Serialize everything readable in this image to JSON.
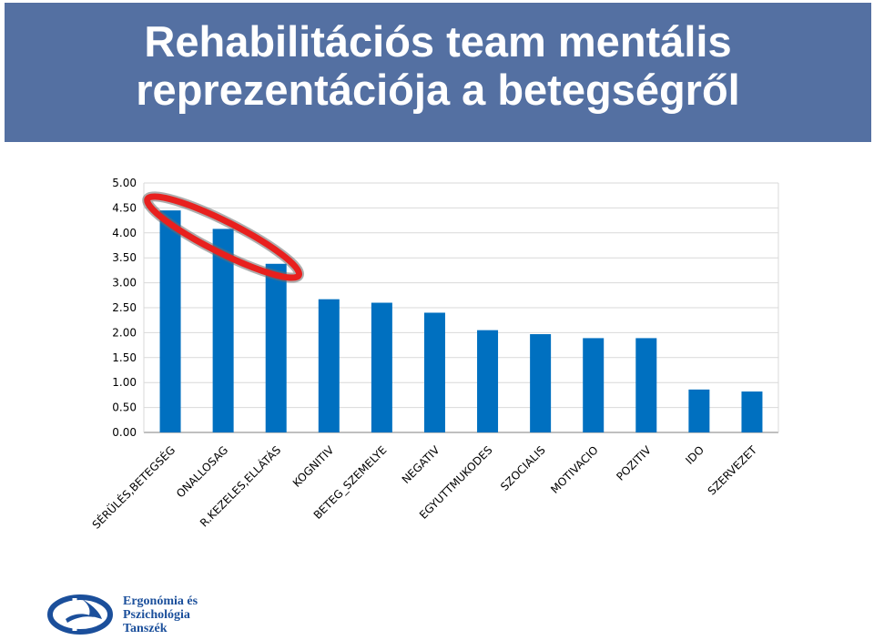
{
  "header": {
    "title_line1": "Rehabilitációs team mentális",
    "title_line2": "reprezentációja a betegségről"
  },
  "chart_data": {
    "type": "bar",
    "title": "",
    "xlabel": "",
    "ylabel": "",
    "ylim": [
      0,
      5
    ],
    "ytick_labels": [
      "0.00",
      "0.50",
      "1.00",
      "1.50",
      "2.00",
      "2.50",
      "3.00",
      "3.50",
      "4.00",
      "4.50",
      "5.00"
    ],
    "grid": true,
    "categories": [
      "SÉRÜLÉS,BETEGSÉG",
      "ONALLOSAG",
      "R.KEZELES,ELLÁTÁS",
      "KOGNITIV",
      "BETEG_SZEMELYE",
      "NEGATIV",
      "EGYUTTMUKODES",
      "SZOCIALIS",
      "MOTIVACIO",
      "POZITIV",
      "IDO",
      "SZERVEZET"
    ],
    "values": [
      4.45,
      4.08,
      3.38,
      2.67,
      2.6,
      2.4,
      2.05,
      1.97,
      1.89,
      1.89,
      0.86,
      0.82
    ],
    "highlighted_categories": [
      "SÉRÜLÉS,BETEGSÉG",
      "ONALLOSAG",
      "R.KEZELES,ELLÁTÁS"
    ],
    "colors": {
      "bar": "#0070c0",
      "highlight_ring": "#e8201e",
      "grid": "#d9d9d9",
      "axis": "#7f7f7f"
    }
  },
  "logo": {
    "icon": "university-logo-icon",
    "color": "#1b4f9b",
    "lines": [
      "Ergonómia és",
      "Pszichológia",
      "Tanszék"
    ]
  }
}
